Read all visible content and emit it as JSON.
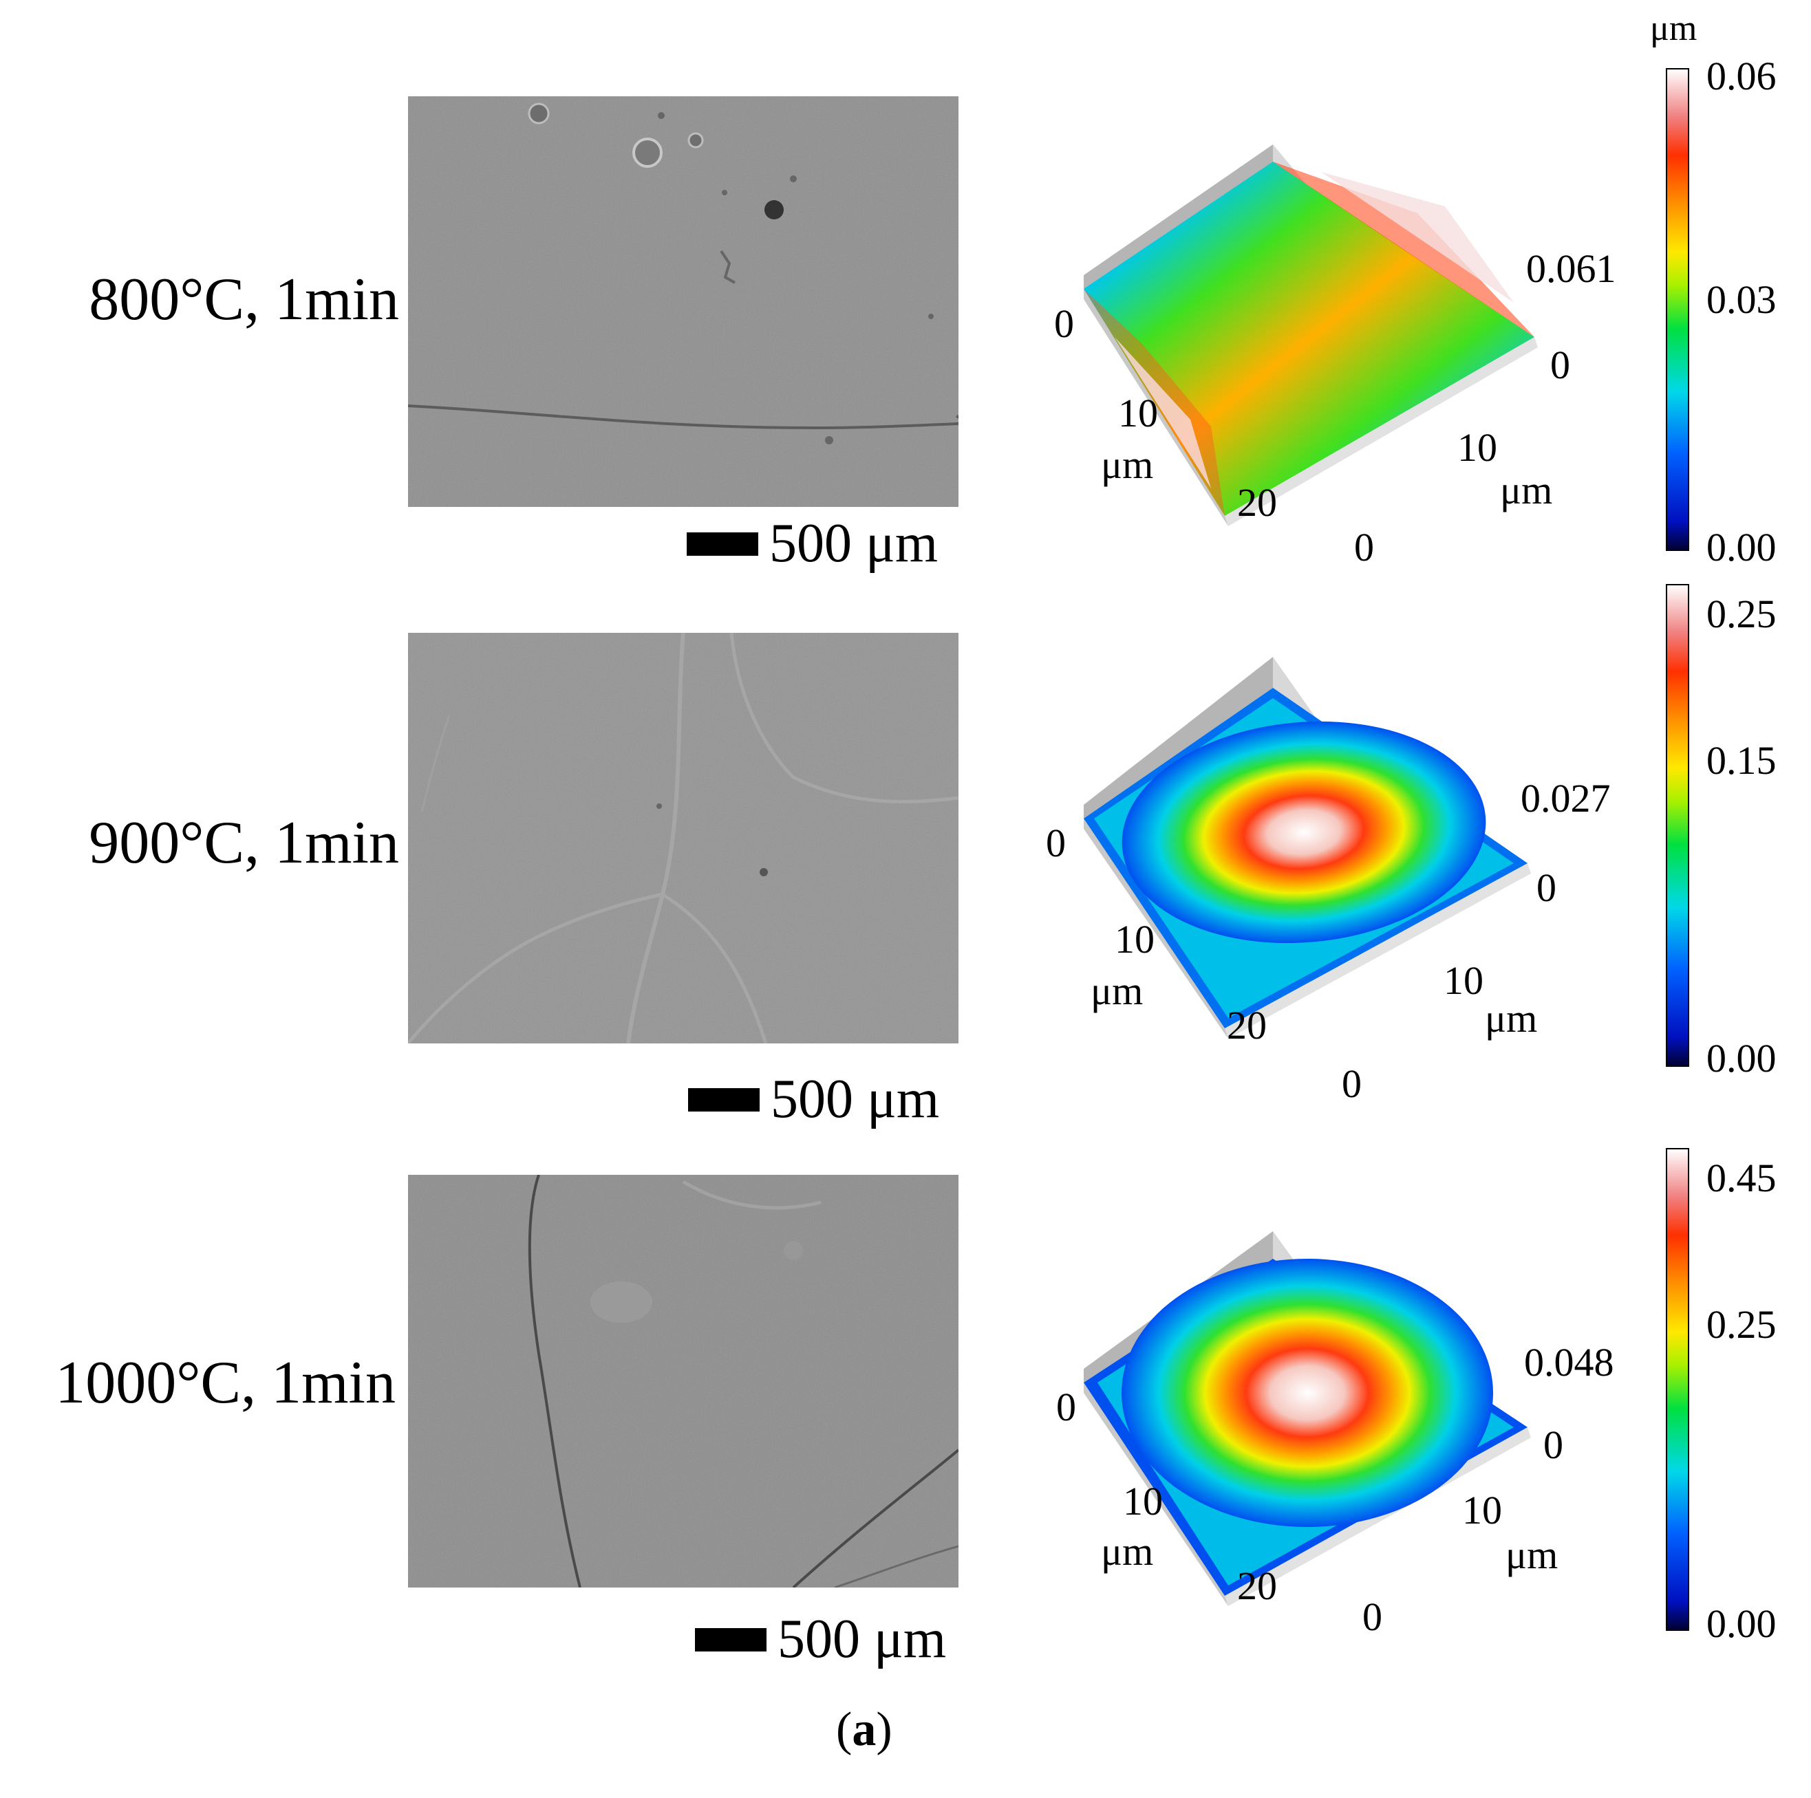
{
  "figure": {
    "caption_open": "(",
    "caption_letter": "a",
    "caption_close": ")"
  },
  "colorbar_unit": "μm",
  "rows": [
    {
      "label": "800°C, 1min",
      "scale_label": "500 μm",
      "afm": {
        "z_max_label": "0.061",
        "x_ticks": [
          "0",
          "10",
          "20",
          "0"
        ],
        "y_ticks": [
          "0",
          "10",
          "0"
        ],
        "x_unit": "μm",
        "y_unit": "μm",
        "pattern": "saddle"
      },
      "colorbar": {
        "max": "0.06",
        "mid": "0.03",
        "min": "0.00"
      }
    },
    {
      "label": "900°C, 1min",
      "scale_label": "500 μm",
      "afm": {
        "z_max_label": "0.027",
        "x_ticks": [
          "0",
          "10",
          "20",
          "0"
        ],
        "y_ticks": [
          "0",
          "10",
          "0"
        ],
        "x_unit": "μm",
        "y_unit": "μm",
        "pattern": "dome-elliptic"
      },
      "colorbar": {
        "max": "0.25",
        "mid": "0.15",
        "min": "0.00"
      }
    },
    {
      "label": "1000°C, 1min",
      "scale_label": "500 μm",
      "afm": {
        "z_max_label": "0.048",
        "x_ticks": [
          "0",
          "10",
          "20",
          "0"
        ],
        "y_ticks": [
          "0",
          "10",
          "0"
        ],
        "x_unit": "μm",
        "y_unit": "μm",
        "pattern": "dome-round"
      },
      "colorbar": {
        "max": "0.45",
        "mid": "0.25",
        "min": "0.00"
      }
    }
  ]
}
